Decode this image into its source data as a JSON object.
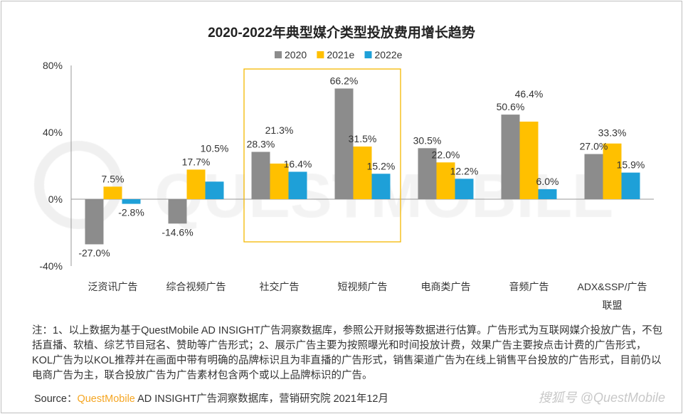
{
  "chart_data": {
    "type": "bar",
    "title": "2020-2022年典型媒介类型投放费用增长趋势",
    "categories": [
      "泛资讯广告",
      "综合视频广告",
      "社交广告",
      "短视频广告",
      "电商类广告",
      "音频广告",
      "ADX&SSP/广告联盟"
    ],
    "category_lines": [
      [
        "泛资讯广告"
      ],
      [
        "综合视频广告"
      ],
      [
        "社交广告"
      ],
      [
        "短视频广告"
      ],
      [
        "电商类广告"
      ],
      [
        "音频广告"
      ],
      [
        "ADX&SSP/广告",
        "联盟"
      ]
    ],
    "series": [
      {
        "name": "2020",
        "color": "#8c8c8c",
        "values": [
          -27.0,
          -14.6,
          28.3,
          66.2,
          30.5,
          50.6,
          27.0
        ]
      },
      {
        "name": "2021e",
        "color": "#ffc000",
        "values": [
          7.5,
          17.7,
          21.3,
          31.5,
          22.0,
          46.4,
          33.3
        ]
      },
      {
        "name": "2022e",
        "color": "#1ea0d8",
        "values": [
          -2.8,
          10.5,
          16.4,
          15.2,
          12.2,
          6.0,
          15.9
        ]
      }
    ],
    "ylim": [
      -40,
      80
    ],
    "yticks": [
      "80%",
      "40%",
      "0%",
      "-40%"
    ],
    "ytick_values": [
      80,
      40,
      0,
      -40
    ],
    "legend_position": "top-center",
    "grid": false,
    "highlighted_categories": [
      "社交广告",
      "短视频广告"
    ],
    "highlight_color": "#f5b800"
  },
  "watermark": "QUESTMOBILE",
  "note": "注：1、以上数据为基于QuestMobile AD INSIGHT广告洞察数据库，参照公开财报等数据进行估算。广告形式为互联网媒介投放广告，不包括直播、软植、综艺节目冠名、赞助等广告形式；2、展示广告主要为按照曝光和时间投放计费，效果广告主要按点击计费的广告形式，KOL广告为以KOL推荐并在画面中带有明确的品牌标识且为非直播的广告形式，销售渠道广告为在线上销售平台投放的广告形式，目前仍以电商广告为主，联合投放广告为广告素材包含两个或以上品牌标识的广告。",
  "source": {
    "label": "Source：",
    "brand": "QuestMobile",
    "rest": " AD INSIGHT广告洞察数据库，营销研究院 2021年12月"
  },
  "attribution": "搜狐号 @QuestMobile"
}
